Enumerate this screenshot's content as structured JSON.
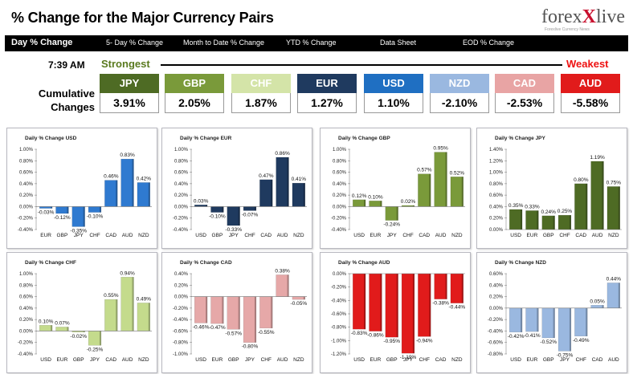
{
  "header": {
    "title": "% Change for the Major Currency Pairs",
    "logo_text_a": "forex",
    "logo_text_b": "live",
    "logo_tagline": "Forexlive Currency News"
  },
  "nav": [
    "Day % Change",
    "5- Day % Change",
    "Month to Date % Change",
    "YTD % Change",
    "Data Sheet",
    "EOD % Change"
  ],
  "summary": {
    "time": "7:39 AM",
    "strongest_label": "Strongest",
    "weakest_label": "Weakest",
    "cumulative_label_1": "Cumulative",
    "cumulative_label_2": "Changes",
    "currencies": [
      {
        "name": "JPY",
        "value": "3.91%",
        "color": "#4e6b24"
      },
      {
        "name": "GBP",
        "value": "2.05%",
        "color": "#7a9a3a"
      },
      {
        "name": "CHF",
        "value": "1.87%",
        "color": "#d4e4a8"
      },
      {
        "name": "EUR",
        "value": "1.27%",
        "color": "#1f3a5f"
      },
      {
        "name": "USD",
        "value": "1.10%",
        "color": "#1f6fc2"
      },
      {
        "name": "NZD",
        "value": "-2.10%",
        "color": "#9ab8e0"
      },
      {
        "name": "CAD",
        "value": "-2.53%",
        "color": "#e8a4a4"
      },
      {
        "name": "AUD",
        "value": "-5.58%",
        "color": "#e11b1b"
      }
    ]
  },
  "chart_data": [
    {
      "type": "bar",
      "title": "Daily % Change USD",
      "color": "#2f7ad0",
      "categories": [
        "EUR",
        "GBP",
        "JPY",
        "CHF",
        "CAD",
        "AUD",
        "NZD"
      ],
      "values": [
        -0.03,
        -0.12,
        -0.35,
        -0.1,
        0.46,
        0.83,
        0.42
      ],
      "labels": [
        "-0.03%",
        "-0.12%",
        "-0.35%",
        "-0.10%",
        "0.46%",
        "0.83%",
        "0.42%"
      ],
      "ylim": [
        -0.4,
        1.0
      ],
      "ticks": [
        "1.00%",
        "0.80%",
        "0.60%",
        "0.40%",
        "0.20%",
        "0.00%",
        "-0.20%",
        "-0.40%"
      ],
      "tickvals": [
        1.0,
        0.8,
        0.6,
        0.4,
        0.2,
        0.0,
        -0.2,
        -0.4
      ]
    },
    {
      "type": "bar",
      "title": "Daily % Change EUR",
      "color": "#1f3a5f",
      "categories": [
        "USD",
        "GBP",
        "JPY",
        "CHF",
        "CAD",
        "AUD",
        "NZD"
      ],
      "values": [
        0.03,
        -0.1,
        -0.33,
        -0.07,
        0.47,
        0.86,
        0.41
      ],
      "labels": [
        "0.03%",
        "-0.10%",
        "-0.33%",
        "-0.07%",
        "0.47%",
        "0.86%",
        "0.41%"
      ],
      "ylim": [
        -0.4,
        1.0
      ],
      "ticks": [
        "1.00%",
        "0.80%",
        "0.60%",
        "0.40%",
        "0.20%",
        "0.00%",
        "-0.20%",
        "-0.40%"
      ],
      "tickvals": [
        1.0,
        0.8,
        0.6,
        0.4,
        0.2,
        0.0,
        -0.2,
        -0.4
      ]
    },
    {
      "type": "bar",
      "title": "Daily % Change GBP",
      "color": "#7a9a3a",
      "categories": [
        "USD",
        "EUR",
        "JPY",
        "CHF",
        "CAD",
        "AUD",
        "NZD"
      ],
      "values": [
        0.12,
        0.1,
        -0.24,
        0.02,
        0.57,
        0.95,
        0.52
      ],
      "labels": [
        "0.12%",
        "0.10%",
        "-0.24%",
        "0.02%",
        "0.57%",
        "0.95%",
        "0.52%"
      ],
      "ylim": [
        -0.4,
        1.0
      ],
      "ticks": [
        "1.00%",
        "0.80%",
        "0.60%",
        "0.40%",
        "0.20%",
        "0.00%",
        "-0.20%",
        "-0.40%"
      ],
      "tickvals": [
        1.0,
        0.8,
        0.6,
        0.4,
        0.2,
        0.0,
        -0.2,
        -0.4
      ]
    },
    {
      "type": "bar",
      "title": "Daily % Change JPY",
      "color": "#4e6b24",
      "categories": [
        "USD",
        "EUR",
        "GBP",
        "CHF",
        "CAD",
        "AUD",
        "NZD"
      ],
      "values": [
        0.35,
        0.33,
        0.24,
        0.25,
        0.8,
        1.19,
        0.75
      ],
      "labels": [
        "0.35%",
        "0.33%",
        "0.24%",
        "0.25%",
        "0.80%",
        "1.19%",
        "0.75%"
      ],
      "ylim": [
        0.0,
        1.4
      ],
      "ticks": [
        "1.40%",
        "1.20%",
        "1.00%",
        "0.80%",
        "0.60%",
        "0.40%",
        "0.20%",
        "0.00%"
      ],
      "tickvals": [
        1.4,
        1.2,
        1.0,
        0.8,
        0.6,
        0.4,
        0.2,
        0.0
      ]
    },
    {
      "type": "bar",
      "title": "Daily % Change CHF",
      "color": "#c4db8c",
      "categories": [
        "USD",
        "EUR",
        "GBP",
        "JPY",
        "CAD",
        "AUD",
        "NZD"
      ],
      "values": [
        0.1,
        0.07,
        -0.02,
        -0.25,
        0.55,
        0.94,
        0.49
      ],
      "labels": [
        "0.10%",
        "0.07%",
        "-0.02%",
        "-0.25%",
        "0.55%",
        "0.94%",
        "0.49%"
      ],
      "ylim": [
        -0.4,
        1.0
      ],
      "ticks": [
        "1.00%",
        "0.80%",
        "0.60%",
        "0.40%",
        "0.20%",
        "0.00%",
        "-0.20%",
        "-0.40%"
      ],
      "tickvals": [
        1.0,
        0.8,
        0.6,
        0.4,
        0.2,
        0.0,
        -0.2,
        -0.4
      ]
    },
    {
      "type": "bar",
      "title": "Daily % Change CAD",
      "color": "#e6a8a8",
      "categories": [
        "USD",
        "EUR",
        "GBP",
        "JPY",
        "CHF",
        "AUD",
        "NZD"
      ],
      "values": [
        -0.46,
        -0.47,
        -0.57,
        -0.8,
        -0.55,
        0.38,
        -0.05
      ],
      "labels": [
        "-0.46%",
        "-0.47%",
        "-0.57%",
        "-0.80%",
        "-0.55%",
        "0.38%",
        "-0.05%"
      ],
      "ylim": [
        -1.0,
        0.4
      ],
      "ticks": [
        "0.40%",
        "0.20%",
        "0.00%",
        "-0.20%",
        "-0.40%",
        "-0.60%",
        "-0.80%",
        "-1.00%"
      ],
      "tickvals": [
        0.4,
        0.2,
        0.0,
        -0.2,
        -0.4,
        -0.6,
        -0.8,
        -1.0
      ]
    },
    {
      "type": "bar",
      "title": "Daily % Change AUD",
      "color": "#e11b1b",
      "categories": [
        "USD",
        "EUR",
        "GBP",
        "JPY",
        "CHF",
        "CAD",
        "NZD"
      ],
      "values": [
        -0.83,
        -0.86,
        -0.95,
        -1.19,
        -0.94,
        -0.38,
        -0.44
      ],
      "labels": [
        "-0.83%",
        "-0.86%",
        "-0.95%",
        "-1.19%",
        "-0.94%",
        "-0.38%",
        "-0.44%"
      ],
      "ylim": [
        -1.2,
        0.0
      ],
      "ticks": [
        "0.00%",
        "-0.20%",
        "-0.40%",
        "-0.60%",
        "-0.80%",
        "-1.00%",
        "-1.20%"
      ],
      "tickvals": [
        0.0,
        -0.2,
        -0.4,
        -0.6,
        -0.8,
        -1.0,
        -1.2
      ]
    },
    {
      "type": "bar",
      "title": "Daily % Change NZD",
      "color": "#9ab8e0",
      "categories": [
        "USD",
        "EUR",
        "GBP",
        "JPY",
        "CHF",
        "CAD",
        "AUD"
      ],
      "values": [
        -0.42,
        -0.41,
        -0.52,
        -0.75,
        -0.49,
        0.05,
        0.44
      ],
      "labels": [
        "-0.42%",
        "-0.41%",
        "-0.52%",
        "-0.75%",
        "-0.49%",
        "0.05%",
        "0.44%"
      ],
      "ylim": [
        -0.8,
        0.6
      ],
      "ticks": [
        "0.60%",
        "0.40%",
        "0.20%",
        "0.00%",
        "-0.20%",
        "-0.40%",
        "-0.60%",
        "-0.80%"
      ],
      "tickvals": [
        0.6,
        0.4,
        0.2,
        0.0,
        -0.2,
        -0.4,
        -0.6,
        -0.8
      ]
    }
  ]
}
